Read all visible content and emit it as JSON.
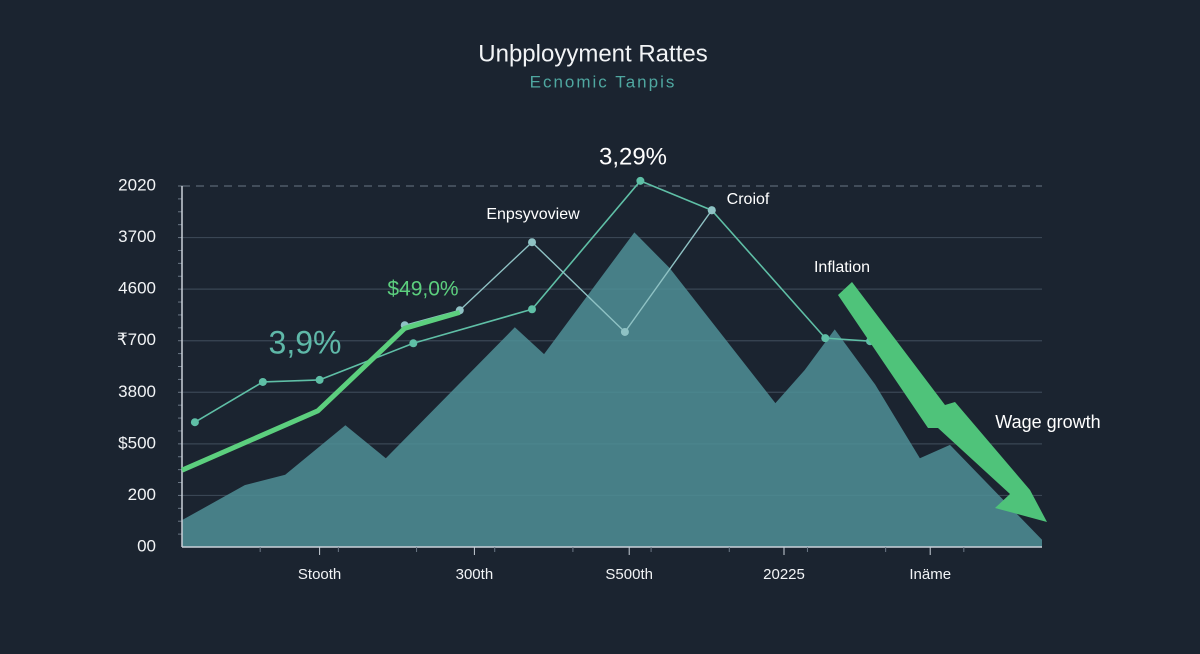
{
  "chart_data": {
    "type": "line",
    "title": "Unþployyment Rattes",
    "subtitle": "Ecnomic  Tanpis",
    "ylim": [
      0,
      7
    ],
    "yticks": [
      {
        "value": 0,
        "label": "00"
      },
      {
        "value": 1,
        "label": "200"
      },
      {
        "value": 2,
        "label": "$500"
      },
      {
        "value": 3,
        "label": "3800"
      },
      {
        "value": 4,
        "label": "₹700"
      },
      {
        "value": 5,
        "label": "4600"
      },
      {
        "value": 6,
        "label": "3700"
      },
      {
        "value": 7,
        "label": "2020"
      }
    ],
    "xlim": [
      0,
      10
    ],
    "xticks": [
      {
        "value": 1.6,
        "label": "Stooth"
      },
      {
        "value": 3.4,
        "label": "300th"
      },
      {
        "value": 5.2,
        "label": "S500th"
      },
      {
        "value": 7.0,
        "label": "20225"
      },
      {
        "value": 8.7,
        "label": "Inäme"
      }
    ],
    "grid": true,
    "area": {
      "color": "#4f8f97",
      "x": [
        0,
        0.73,
        1.2,
        1.9,
        2.37,
        3.87,
        4.21,
        5.26,
        5.67,
        6.9,
        7.24,
        7.59,
        8.06,
        8.58,
        8.93,
        10
      ],
      "values": [
        0.52,
        1.2,
        1.4,
        2.36,
        1.72,
        4.26,
        3.74,
        6.1,
        5.41,
        2.79,
        3.43,
        4.22,
        3.15,
        1.72,
        1.98,
        0.14
      ]
    },
    "series": [
      {
        "color": "#5fbfa6",
        "width": 1.6,
        "markers": true,
        "x": [
          0.15,
          0.94,
          1.6,
          2.69,
          4.07,
          5.33,
          6.16,
          7.48,
          8.0
        ],
        "values": [
          2.42,
          3.2,
          3.24,
          3.95,
          4.61,
          7.1,
          6.53,
          4.05,
          3.99
        ]
      },
      {
        "color": "#8fc2c4",
        "width": 1.4,
        "markers": true,
        "x": [
          2.59,
          3.23,
          4.07,
          5.15,
          6.16
        ],
        "values": [
          4.3,
          4.59,
          5.91,
          4.17,
          6.53
        ]
      },
      {
        "color": "#5ccf7e",
        "width": 5,
        "markers": false,
        "x": [
          0,
          1.58,
          2.59,
          3.23
        ],
        "values": [
          1.49,
          2.64,
          4.24,
          4.55
        ]
      }
    ],
    "annotations": [
      "3,29%",
      "Enpsyvoview",
      "Croiof",
      "Inflation",
      "$49,0%",
      "3,9%",
      "Wage growth"
    ]
  }
}
